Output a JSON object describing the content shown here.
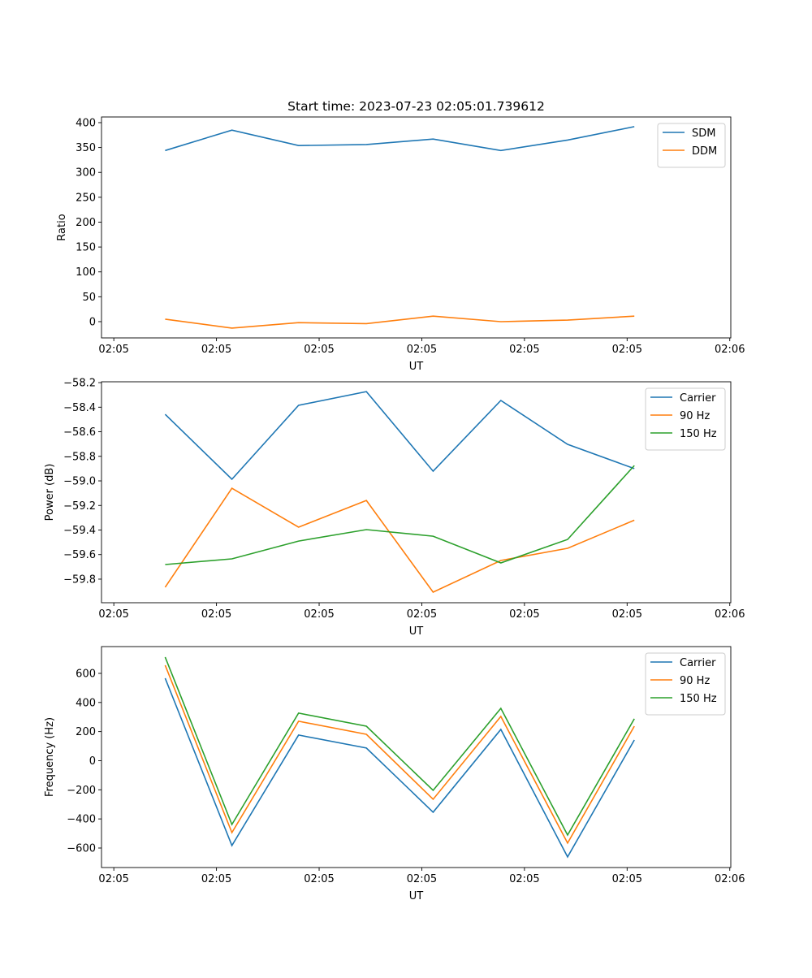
{
  "title": "Start time: 2023-07-23 02:05:01.739612",
  "chart_data": [
    {
      "type": "line",
      "xlabel": "UT",
      "ylabel": "Ratio",
      "x_seconds_after_0205": [
        5.0,
        11.5,
        18.0,
        24.6,
        31.1,
        37.7,
        44.2,
        50.7
      ],
      "xlim": [
        -1.2,
        60.1
      ],
      "xticks": [
        {
          "v": 0,
          "label": "02:05"
        },
        {
          "v": 10,
          "label": "02:05"
        },
        {
          "v": 20,
          "label": "02:05"
        },
        {
          "v": 30,
          "label": "02:05"
        },
        {
          "v": 40,
          "label": "02:05"
        },
        {
          "v": 50,
          "label": "02:05"
        },
        {
          "v": 60,
          "label": "02:06"
        }
      ],
      "ylim": [
        -32.7,
        411.4
      ],
      "yticks": [
        0,
        50,
        100,
        150,
        200,
        250,
        300,
        350,
        400
      ],
      "ytick_labels": [
        "0",
        "50",
        "100",
        "150",
        "200",
        "250",
        "300",
        "350",
        "400"
      ],
      "legend_position": "top-right",
      "series": [
        {
          "name": "SDM",
          "color": "#1f77b4",
          "values": [
            344,
            385,
            354,
            356,
            367,
            344,
            365,
            392
          ]
        },
        {
          "name": "DDM",
          "color": "#ff7f0e",
          "values": [
            5,
            -13,
            -2,
            -4,
            11,
            0,
            3,
            11
          ]
        }
      ]
    },
    {
      "type": "line",
      "xlabel": "UT",
      "ylabel": "Power (dB)",
      "x_seconds_after_0205": [
        5.0,
        11.5,
        18.0,
        24.6,
        31.1,
        37.7,
        44.2,
        50.7
      ],
      "xlim": [
        -1.2,
        60.1
      ],
      "xticks": [
        {
          "v": 0,
          "label": "02:05"
        },
        {
          "v": 10,
          "label": "02:05"
        },
        {
          "v": 20,
          "label": "02:05"
        },
        {
          "v": 30,
          "label": "02:05"
        },
        {
          "v": 40,
          "label": "02:05"
        },
        {
          "v": 50,
          "label": "02:05"
        },
        {
          "v": 60,
          "label": "02:06"
        }
      ],
      "ylim": [
        -59.992,
        -58.193
      ],
      "yticks": [
        -59.8,
        -59.6,
        -59.4,
        -59.2,
        -59.0,
        -58.8,
        -58.6,
        -58.4,
        -58.2
      ],
      "ytick_labels": [
        "−59.8",
        "−59.6",
        "−59.4",
        "−59.2",
        "−59.0",
        "−58.8",
        "−58.6",
        "−58.4",
        "−58.2"
      ],
      "legend_position": "top-right",
      "series": [
        {
          "name": "Carrier",
          "color": "#1f77b4",
          "values": [
            -58.458,
            -58.987,
            -58.385,
            -58.273,
            -58.921,
            -58.345,
            -58.702,
            -58.9
          ]
        },
        {
          "name": "90 Hz",
          "color": "#ff7f0e",
          "values": [
            -59.866,
            -59.06,
            -59.377,
            -59.159,
            -59.906,
            -59.648,
            -59.549,
            -59.32
          ]
        },
        {
          "name": "150 Hz",
          "color": "#2ca02c",
          "values": [
            -59.681,
            -59.635,
            -59.49,
            -59.397,
            -59.45,
            -59.668,
            -59.477,
            -58.875
          ]
        }
      ]
    },
    {
      "type": "line",
      "xlabel": "UT",
      "ylabel": "Frequency (Hz)",
      "x_seconds_after_0205": [
        5.0,
        11.5,
        18.0,
        24.6,
        31.1,
        37.7,
        44.2,
        50.7
      ],
      "xlim": [
        -1.2,
        60.1
      ],
      "xticks": [
        {
          "v": 0,
          "label": "02:05"
        },
        {
          "v": 10,
          "label": "02:05"
        },
        {
          "v": 20,
          "label": "02:05"
        },
        {
          "v": 30,
          "label": "02:05"
        },
        {
          "v": 40,
          "label": "02:05"
        },
        {
          "v": 50,
          "label": "02:05"
        },
        {
          "v": 60,
          "label": "02:06"
        }
      ],
      "ylim": [
        -734,
        784
      ],
      "yticks": [
        -600,
        -400,
        -200,
        0,
        200,
        400,
        600
      ],
      "ytick_labels": [
        "−600",
        "−400",
        "−200",
        "0",
        "200",
        "400",
        "600"
      ],
      "legend_position": "top-right",
      "series": [
        {
          "name": "Carrier",
          "color": "#1f77b4",
          "values": [
            567,
            -583,
            176,
            87,
            -354,
            215,
            -661,
            142
          ]
        },
        {
          "name": "90 Hz",
          "color": "#ff7f0e",
          "values": [
            656,
            -494,
            271,
            181,
            -265,
            304,
            -566,
            237
          ]
        },
        {
          "name": "150 Hz",
          "color": "#2ca02c",
          "values": [
            712,
            -438,
            327,
            237,
            -204,
            360,
            -511,
            288
          ]
        }
      ]
    }
  ]
}
